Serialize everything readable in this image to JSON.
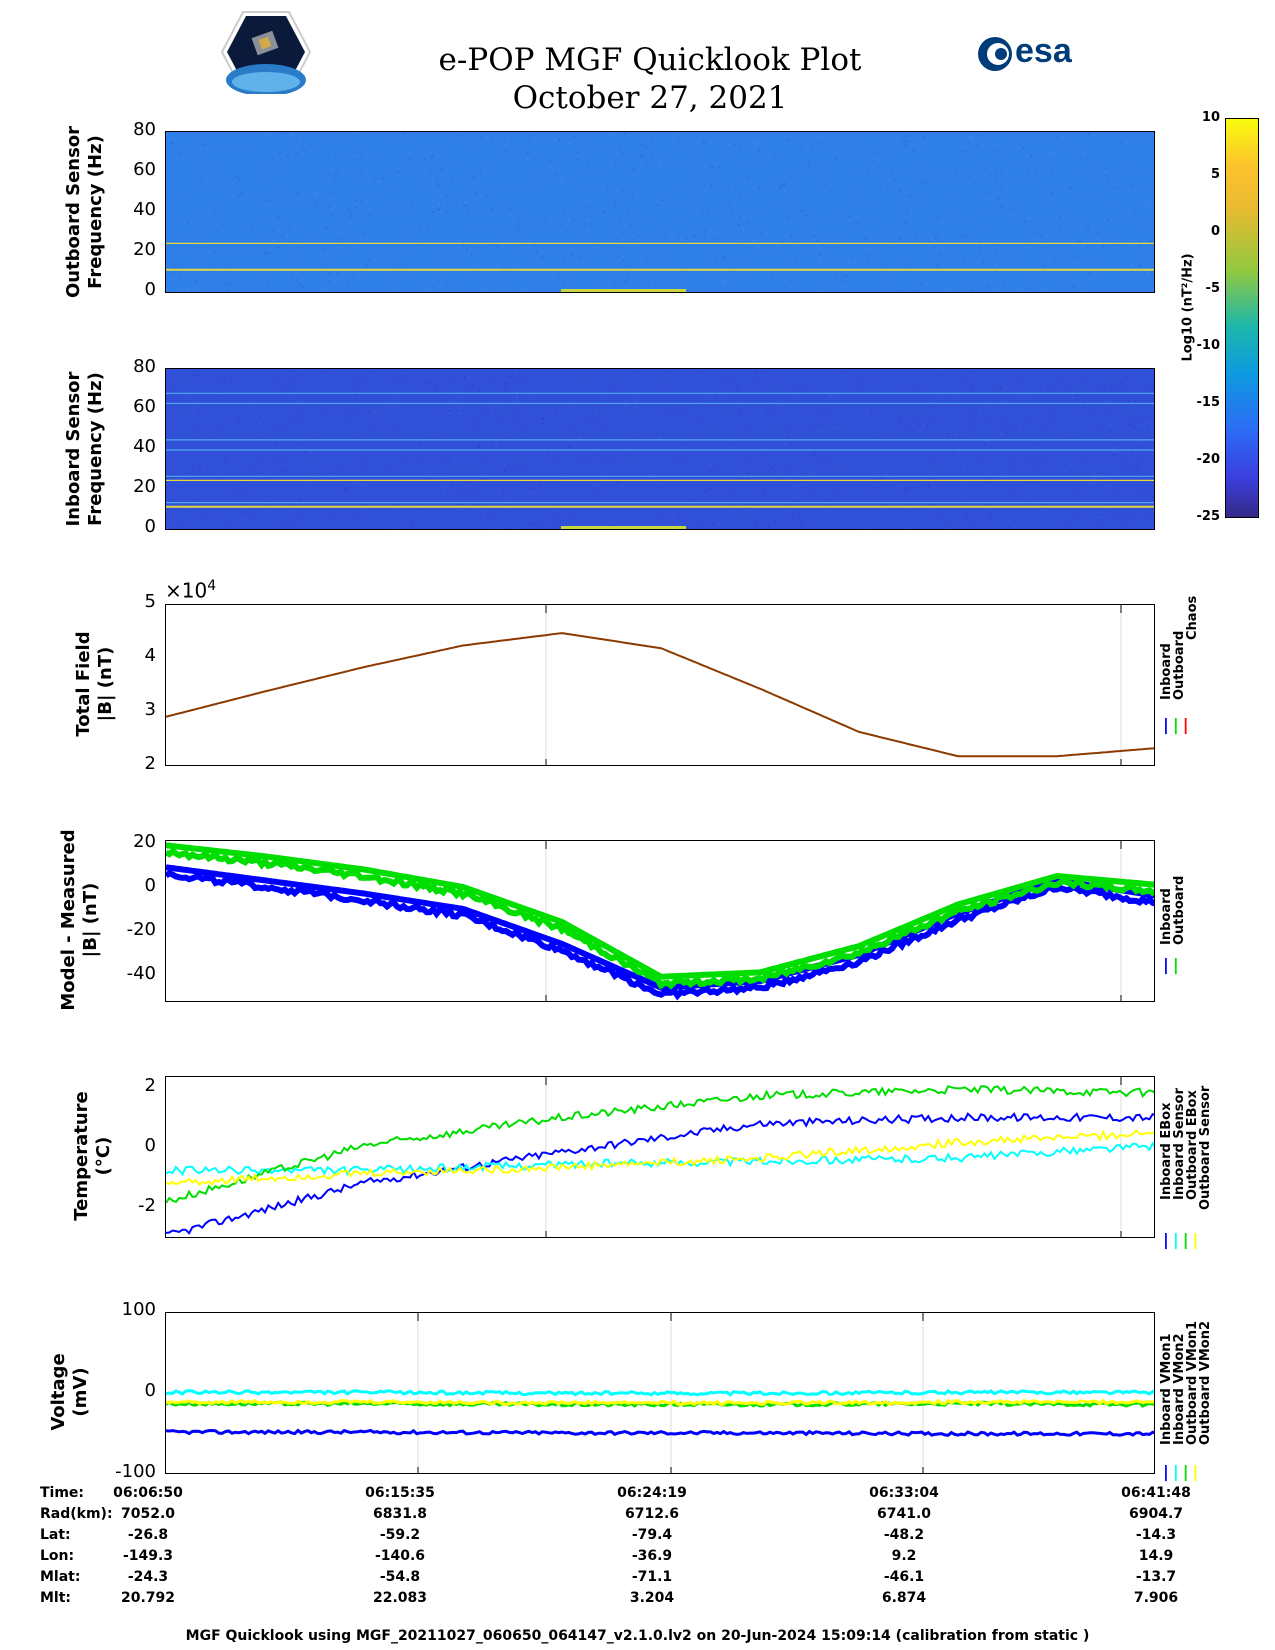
{
  "header": {
    "title_line1": "e-POP MGF Quicklook Plot",
    "title_line2": "October 27, 2021",
    "logo_left": "CASSIOPE",
    "logo_right": "esa"
  },
  "colorbar": {
    "label": "Log10 (nT²/Hz)",
    "ticks": [
      "10",
      "5",
      "0",
      "-5",
      "-10",
      "-15",
      "-20",
      "-25"
    ],
    "range": [
      -25,
      10
    ]
  },
  "panels": {
    "outboard_spec": {
      "ylabel": "Outboard Sensor\nFrequency (Hz)",
      "yticks": [
        "80",
        "60",
        "40",
        "20",
        "0"
      ]
    },
    "inboard_spec": {
      "ylabel": "Inboard Sensor\nFrequency (Hz)",
      "yticks": [
        "80",
        "60",
        "40",
        "20",
        "0"
      ]
    },
    "total_field": {
      "ylabel": "Total Field\n|B| (nT)",
      "yticks": [
        "5",
        "4",
        "3",
        "2"
      ],
      "exponent": "×10",
      "exponent_power": "4",
      "legend": [
        "Inboard",
        "Outboard",
        "Chaos"
      ]
    },
    "model_measured": {
      "ylabel": "Model - Measured\n|B| (nT)",
      "yticks": [
        "20",
        "0",
        "-20",
        "-40"
      ],
      "legend": [
        "Inboard",
        "Outboard"
      ]
    },
    "temperature": {
      "ylabel": "Temperature\n(°C)",
      "yticks": [
        "2",
        "0",
        "-2"
      ],
      "legend": [
        "Inboard EBox",
        "Inboard Sensor",
        "Outboard EBox",
        "Outboard Sensor"
      ]
    },
    "voltage": {
      "ylabel": "Voltage\n(mV)",
      "yticks": [
        "100",
        "0",
        "-100"
      ],
      "legend": [
        "Inboard VMon1",
        "Inboard VMon2",
        "Outboard VMon1",
        "Outboard VMon2"
      ]
    }
  },
  "colors": {
    "inboard": "#0000ff",
    "outboard": "#00dd00",
    "chaos": "#ff0000",
    "cyan": "#00ffff",
    "yellow": "#ffff00",
    "field_line": "#8b3a00"
  },
  "info": {
    "labels": [
      "Time:",
      "Rad(km):",
      "Lat:",
      "Lon:",
      "Mlat:",
      "Mlt:"
    ],
    "columns": [
      [
        "06:06:50",
        "7052.0",
        "-26.8",
        "-149.3",
        "-24.3",
        "20.792"
      ],
      [
        "06:15:35",
        "6831.8",
        "-59.2",
        "-140.6",
        "-54.8",
        "22.083"
      ],
      [
        "06:24:19",
        "6712.6",
        "-79.4",
        "-36.9",
        "-71.1",
        "3.204"
      ],
      [
        "06:33:04",
        "6741.0",
        "-48.2",
        "9.2",
        "-46.1",
        "6.874"
      ],
      [
        "06:41:48",
        "6904.7",
        "-14.3",
        "14.9",
        "-13.7",
        "7.906"
      ]
    ]
  },
  "footer": "MGF Quicklook using MGF_20211027_060650_064147_v2.1.0.lv2 on 20-Jun-2024 15:09:14 (calibration from static )",
  "chart_data": [
    {
      "type": "heatmap",
      "title": "",
      "ylabel": "Outboard Sensor Frequency (Hz)",
      "ylim": [
        0,
        80
      ],
      "x": [
        "06:06:50",
        "06:41:48"
      ],
      "color_scale": "Log10 (nT²/Hz)",
      "clim": [
        -25,
        10
      ],
      "lines_hz": [
        12,
        25
      ]
    },
    {
      "type": "heatmap",
      "ylabel": "Inboard Sensor Frequency (Hz)",
      "ylim": [
        0,
        80
      ],
      "x": [
        "06:06:50",
        "06:41:48"
      ],
      "clim": [
        -25,
        10
      ],
      "lines_hz": [
        12,
        14,
        25,
        27,
        40,
        45,
        63,
        68
      ]
    },
    {
      "type": "line",
      "ylabel": "Total Field |B| (nT)",
      "ylim": [
        20000,
        50000
      ],
      "x_frac": [
        0,
        0.1,
        0.2,
        0.3,
        0.4,
        0.5,
        0.6,
        0.7,
        0.8,
        0.9,
        1.0
      ],
      "series": [
        {
          "name": "Chaos",
          "values": [
            29300,
            34000,
            38500,
            42500,
            44800,
            42000,
            34500,
            26500,
            22000,
            22000,
            23500
          ]
        }
      ]
    },
    {
      "type": "line",
      "ylabel": "Model - Measured |B| (nT)",
      "ylim": [
        -52,
        22
      ],
      "x_frac": [
        0,
        0.1,
        0.2,
        0.3,
        0.4,
        0.5,
        0.6,
        0.7,
        0.8,
        0.9,
        1.0
      ],
      "series": [
        {
          "name": "Inboard",
          "values": [
            7,
            1,
            -5,
            -12,
            -28,
            -48,
            -45,
            -33,
            -14,
            1,
            -6
          ]
        },
        {
          "name": "Outboard",
          "values": [
            17,
            12,
            6,
            -2,
            -18,
            -43,
            -41,
            -29,
            -10,
            3,
            -1
          ]
        }
      ]
    },
    {
      "type": "line",
      "ylabel": "Temperature (°C)",
      "ylim": [
        -2.8,
        2.4
      ],
      "x_frac": [
        0,
        0.2,
        0.4,
        0.6,
        0.8,
        1.0
      ],
      "series": [
        {
          "name": "Inboard EBox",
          "values": [
            -2.7,
            -1.0,
            0.0,
            0.9,
            1.1,
            1.1
          ]
        },
        {
          "name": "Inboard Sensor",
          "values": [
            -0.6,
            -0.6,
            -0.4,
            -0.3,
            -0.2,
            0.2
          ]
        },
        {
          "name": "Outboard EBox",
          "values": [
            -1.6,
            0.2,
            1.1,
            1.8,
            2.0,
            1.9
          ]
        },
        {
          "name": "Outboard Sensor",
          "values": [
            -1.0,
            -0.7,
            -0.5,
            -0.2,
            0.3,
            0.6
          ]
        }
      ]
    },
    {
      "type": "line",
      "ylabel": "Voltage (mV)",
      "ylim": [
        -100,
        100
      ],
      "x_frac": [
        0,
        0.2,
        0.4,
        0.6,
        0.8,
        1.0
      ],
      "series": [
        {
          "name": "Inboard VMon1",
          "values": [
            -47,
            -47,
            -48,
            -48,
            -49,
            -49
          ]
        },
        {
          "name": "Inboard VMon2",
          "values": [
            2,
            2,
            1,
            1,
            2,
            2
          ]
        },
        {
          "name": "Outboard VMon1",
          "values": [
            -12,
            -12,
            -13,
            -13,
            -12,
            -13
          ]
        },
        {
          "name": "Outboard VMon2",
          "values": [
            -10,
            -10,
            -11,
            -11,
            -10,
            -10
          ]
        }
      ]
    }
  ]
}
